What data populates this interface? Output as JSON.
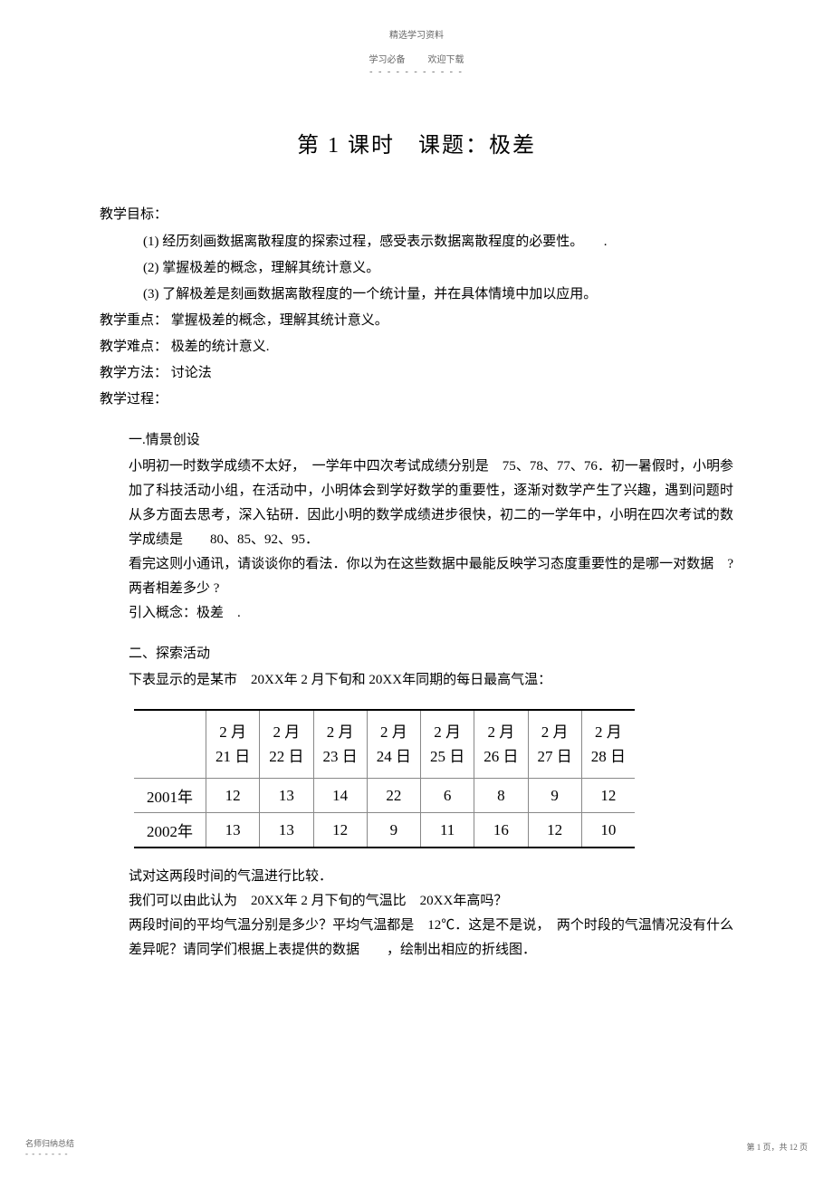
{
  "header": {
    "label": "精选学习资料",
    "sub_left": "学习必备",
    "sub_right": "欢迎下载",
    "dash": "- - - - - - - - - - -"
  },
  "title": "第 1 课时　课题：极差",
  "objectives": {
    "heading": "教学目标：",
    "items": [
      "(1) 经历刻画数据离散程度的探索过程，感受表示数据离散程度的必要性。　　.",
      "(2) 掌握极差的概念，理解其统计意义。",
      "(3) 了解极差是刻画数据离散程度的一个统计量，并在具体情境中加以应用。"
    ]
  },
  "key_point": {
    "label": "教学重点：",
    "text": "掌握极差的概念，理解其统计意义。"
  },
  "difficult_point": {
    "label": "教学难点：",
    "text": "极差的统计意义."
  },
  "method": {
    "label": "教学方法：",
    "text": "讨论法"
  },
  "process": {
    "label": "教学过程："
  },
  "section1": {
    "heading": "一.情景创设",
    "p1": "小明初一时数学成绩不太好，　一学年中四次考试成绩分别是　75、78、77、76．初一暑假时，小明参加了科技活动小组，在活动中，小明体会到学好数学的重要性，逐渐对数学产生了兴趣，遇到问题时从多方面去思考，深入钻研．因此小明的数学成绩进步很快，初二的一学年中，小明在四次考试的数学成绩是　　80、85、92、95．",
    "p2": "看完这则小通讯，请谈谈你的看法．你以为在这些数据中最能反映学习态度重要性的是哪一对数据　?两者相差多少 ?",
    "p3": "引入概念：极差　."
  },
  "section2": {
    "heading": "二、探索活动",
    "intro": "下表显示的是某市　20XX年 2 月下旬和 20XX年同期的每日最高气温：",
    "table": {
      "head": [
        "",
        "2 月\n21 日",
        "2 月\n22 日",
        "2 月\n23 日",
        "2 月\n24 日",
        "2 月\n25 日",
        "2 月\n26 日",
        "2 月\n27 日",
        "2 月\n28 日"
      ],
      "rows": [
        [
          "2001年",
          "12",
          "13",
          "14",
          "22",
          "6",
          "8",
          "9",
          "12"
        ],
        [
          "2002年",
          "13",
          "13",
          "12",
          "9",
          "11",
          "16",
          "12",
          "10"
        ]
      ]
    },
    "p1": "试对这两段时间的气温进行比较．",
    "p2": "我们可以由此认为　20XX年 2 月下旬的气温比　20XX年高吗？",
    "p3": "两段时间的平均气温分别是多少？平均气温都是　12℃．这是不是说，　两个时段的气温情况没有什么差异呢？请同学们根据上表提供的数据　　，绘制出相应的折线图．"
  },
  "footer": {
    "left": "名师归纳总结",
    "left_dash": "- - - - - - -",
    "right": "第 1 页，共 12 页"
  }
}
